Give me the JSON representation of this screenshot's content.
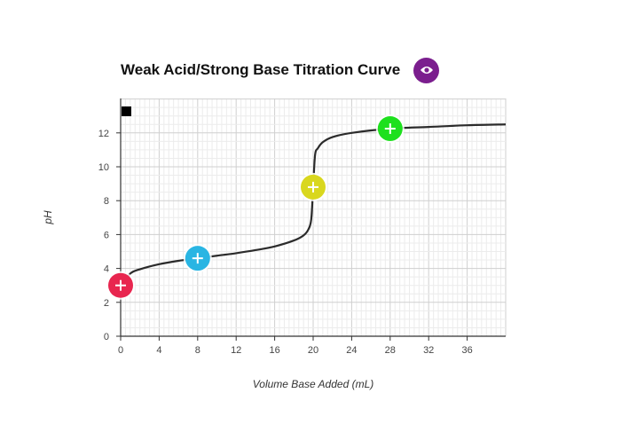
{
  "title": "Weak Acid/Strong Base Titration Curve",
  "toolbar": {
    "view_icon": "eye-icon",
    "view_button_color": "#7b1e8e"
  },
  "chart_data": {
    "type": "line",
    "title": "Weak Acid/Strong Base Titration Curve",
    "xlabel": "Volume Base Added (mL)",
    "ylabel": "pH",
    "xlim": [
      0,
      40
    ],
    "ylim": [
      0,
      14
    ],
    "x_ticks": [
      0,
      4,
      8,
      12,
      16,
      20,
      24,
      28,
      32,
      36
    ],
    "y_ticks": [
      0,
      2,
      4,
      6,
      8,
      10,
      12
    ],
    "grid": true,
    "legend_marker_color": "#000000",
    "curve": {
      "x": [
        0,
        1,
        2,
        4,
        6,
        8,
        10,
        12,
        14,
        16,
        18,
        19,
        19.5,
        19.8,
        20,
        20.2,
        20.5,
        21,
        22,
        24,
        28,
        32,
        36,
        40
      ],
      "y": [
        3.0,
        3.7,
        3.95,
        4.25,
        4.45,
        4.6,
        4.75,
        4.9,
        5.08,
        5.3,
        5.65,
        5.95,
        6.3,
        6.9,
        8.8,
        10.7,
        11.1,
        11.45,
        11.75,
        12.0,
        12.25,
        12.35,
        12.45,
        12.5
      ],
      "color": "#2b2b2b"
    },
    "points": [
      {
        "x": 0,
        "y": 3.0,
        "color": "#e8264f"
      },
      {
        "x": 8,
        "y": 4.6,
        "color": "#29b5e3"
      },
      {
        "x": 20,
        "y": 8.8,
        "color": "#d9d71e"
      },
      {
        "x": 28,
        "y": 12.25,
        "color": "#1ee01e"
      }
    ]
  }
}
